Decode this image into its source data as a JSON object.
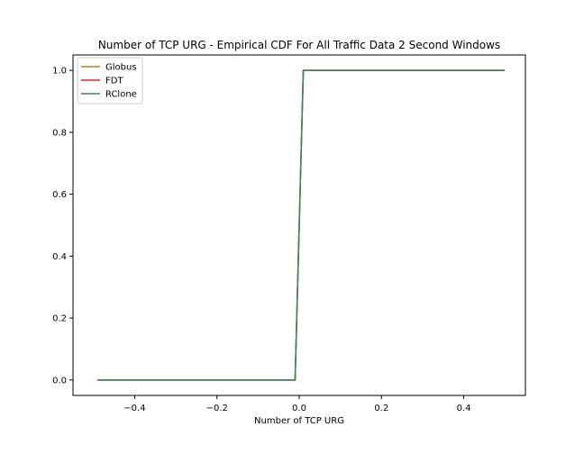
{
  "chart_data": {
    "type": "line",
    "title": "Number of TCP URG - Empirical CDF For All Traffic Data 2 Second Windows",
    "xlabel": "Number of TCP URG",
    "ylabel": "",
    "xlim": [
      -0.55,
      0.55
    ],
    "ylim": [
      -0.05,
      1.05
    ],
    "x_ticks": [
      -0.4,
      -0.2,
      0.0,
      0.2,
      0.4
    ],
    "x_tick_labels": [
      "−0.4",
      "−0.2",
      "0.0",
      "0.2",
      "0.4"
    ],
    "y_ticks": [
      0.0,
      0.2,
      0.4,
      0.6,
      0.8,
      1.0
    ],
    "y_tick_labels": [
      "0.0",
      "0.2",
      "0.4",
      "0.6",
      "0.8",
      "1.0"
    ],
    "grid": false,
    "legend_position": "top-left",
    "series": [
      {
        "name": "Globus",
        "color": "#b8860b",
        "x": [
          -0.49,
          -0.01,
          0.01,
          0.5
        ],
        "y": [
          0,
          0,
          1,
          1
        ]
      },
      {
        "name": "FDT",
        "color": "#d62728",
        "x": [
          -0.49,
          -0.01,
          0.01,
          0.5
        ],
        "y": [
          0,
          0,
          1,
          1
        ]
      },
      {
        "name": "RClone",
        "color": "#2e8b57",
        "x": [
          -0.49,
          -0.01,
          0.01,
          0.5
        ],
        "y": [
          0,
          0,
          1,
          1
        ]
      }
    ]
  }
}
